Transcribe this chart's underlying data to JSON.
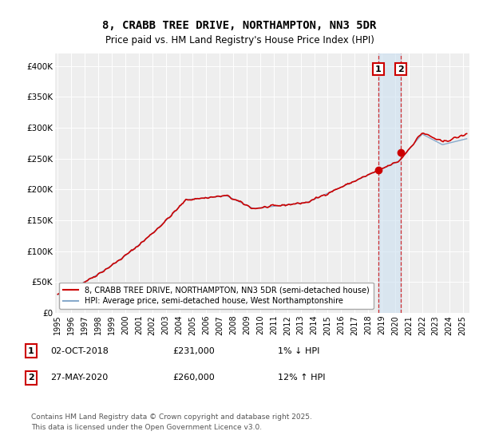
{
  "title": "8, CRABB TREE DRIVE, NORTHAMPTON, NN3 5DR",
  "subtitle": "Price paid vs. HM Land Registry's House Price Index (HPI)",
  "legend_line1": "8, CRABB TREE DRIVE, NORTHAMPTON, NN3 5DR (semi-detached house)",
  "legend_line2": "HPI: Average price, semi-detached house, West Northamptonshire",
  "annotation1_label": "1",
  "annotation1_date": "02-OCT-2018",
  "annotation1_price": "£231,000",
  "annotation1_hpi": "1% ↓ HPI",
  "annotation2_label": "2",
  "annotation2_date": "27-MAY-2020",
  "annotation2_price": "£260,000",
  "annotation2_hpi": "12% ↑ HPI",
  "footer": "Contains HM Land Registry data © Crown copyright and database right 2025.\nThis data is licensed under the Open Government Licence v3.0.",
  "red_color": "#cc0000",
  "blue_color": "#88aacc",
  "sale1_x": 2018.75,
  "sale1_y": 231000,
  "sale2_x": 2020.42,
  "sale2_y": 260000,
  "ylim": [
    0,
    420000
  ],
  "xlim": [
    1994.8,
    2025.5
  ],
  "background_color": "#ffffff",
  "plot_bg_color": "#eeeeee"
}
